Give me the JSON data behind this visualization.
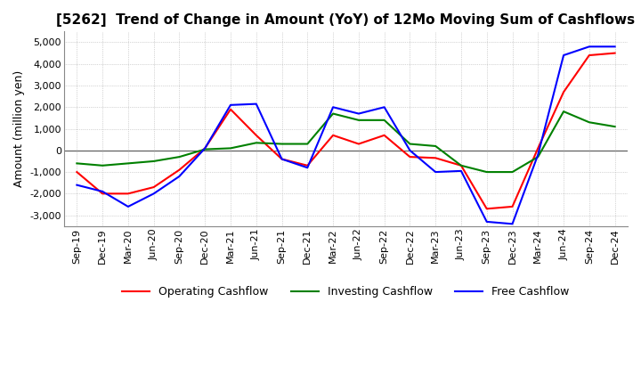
{
  "title": "[5262]  Trend of Change in Amount (YoY) of 12Mo Moving Sum of Cashflows",
  "ylabel": "Amount (million yen)",
  "ylim": [
    -3500,
    5500
  ],
  "yticks": [
    -3000,
    -2000,
    -1000,
    0,
    1000,
    2000,
    3000,
    4000,
    5000
  ],
  "x_labels": [
    "Sep-19",
    "Dec-19",
    "Mar-20",
    "Jun-20",
    "Sep-20",
    "Dec-20",
    "Mar-21",
    "Jun-21",
    "Sep-21",
    "Dec-21",
    "Mar-22",
    "Jun-22",
    "Sep-22",
    "Dec-22",
    "Mar-23",
    "Jun-23",
    "Sep-23",
    "Dec-23",
    "Mar-24",
    "Jun-24",
    "Sep-24",
    "Dec-24"
  ],
  "operating": [
    -1000,
    -2000,
    -2000,
    -1700,
    -900,
    100,
    1900,
    700,
    -400,
    -700,
    700,
    300,
    700,
    -300,
    -350,
    -700,
    -2700,
    -2600,
    100,
    2700,
    4400,
    4500
  ],
  "investing": [
    -600,
    -700,
    -600,
    -500,
    -300,
    50,
    100,
    350,
    300,
    300,
    1700,
    1400,
    1400,
    300,
    200,
    -700,
    -1000,
    -1000,
    -300,
    1800,
    1300,
    1100
  ],
  "free": [
    -1600,
    -1900,
    -2600,
    -2000,
    -1200,
    100,
    2100,
    2150,
    -400,
    -800,
    2000,
    1700,
    2000,
    0,
    -1000,
    -950,
    -3300,
    -3400,
    -200,
    4400,
    4800,
    4800
  ],
  "line_colors": {
    "operating": "#ff0000",
    "investing": "#008000",
    "free": "#0000ff"
  },
  "background_color": "#ffffff",
  "grid_color": "#b0b0b0",
  "title_fontsize": 11,
  "tick_fontsize": 8,
  "label_fontsize": 9
}
